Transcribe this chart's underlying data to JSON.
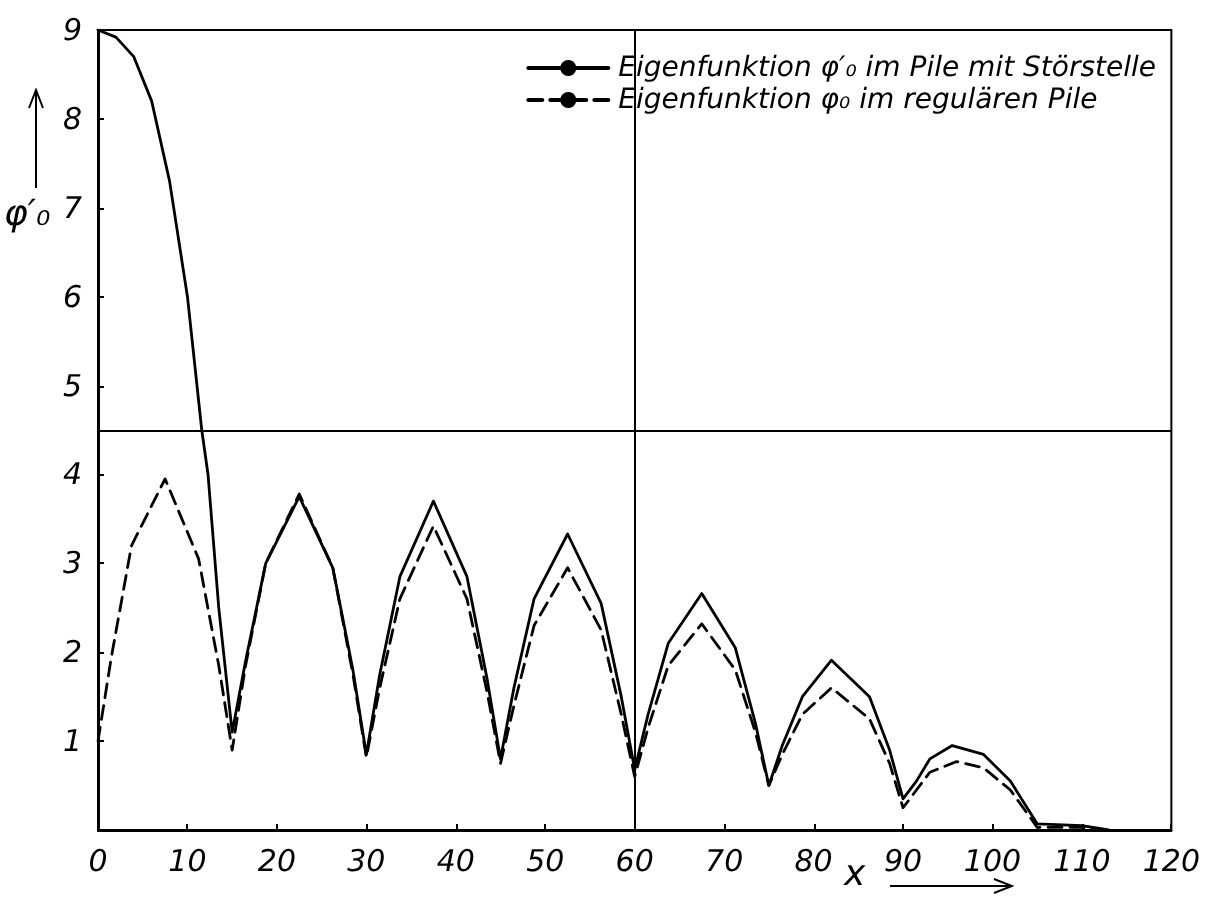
{
  "chart_data": {
    "type": "line",
    "xlabel": "x",
    "ylabel": "φ′₀",
    "xlim": [
      0,
      120
    ],
    "ylim": [
      0,
      9
    ],
    "xticks": [
      0,
      10,
      20,
      30,
      40,
      50,
      60,
      70,
      80,
      90,
      100,
      110,
      120
    ],
    "yticks": [
      1,
      2,
      3,
      4,
      5,
      6,
      7,
      8,
      9
    ],
    "grid": false,
    "legend": "top right",
    "marker": "none",
    "ref_lines": [
      {
        "axis": "y",
        "value": 4.5,
        "color": "#000000"
      },
      {
        "axis": "x",
        "value": 60,
        "color": "#000000"
      }
    ],
    "series": [
      {
        "name": "Eigenfunktion φ′₀ im Pile mit Störstelle",
        "color": "#000000",
        "line_style": "solid",
        "x": [
          0,
          2,
          4,
          6,
          8,
          10,
          11.6,
          12.3,
          13.5,
          15,
          16.5,
          18.75,
          22.5,
          26.25,
          28.5,
          30,
          31.5,
          33.75,
          37.5,
          41.25,
          43.5,
          45,
          46.5,
          48.75,
          52.5,
          56.25,
          58.5,
          60,
          61.5,
          63.75,
          67.5,
          71.25,
          73.5,
          75,
          76.5,
          78.75,
          82,
          86.25,
          88.5,
          90,
          91.5,
          93,
          95.5,
          99,
          102,
          105,
          110,
          113
        ],
        "values": [
          9,
          8.92,
          8.7,
          8.2,
          7.3,
          6,
          4.5,
          4,
          2.5,
          1.1,
          1.9,
          3.0,
          3.75,
          2.95,
          1.8,
          0.85,
          1.75,
          2.85,
          3.7,
          2.85,
          1.7,
          0.8,
          1.6,
          2.6,
          3.33,
          2.55,
          1.5,
          0.68,
          1.3,
          2.1,
          2.66,
          2.05,
          1.2,
          0.5,
          0.95,
          1.5,
          1.91,
          1.5,
          0.9,
          0.35,
          0.55,
          0.8,
          0.95,
          0.85,
          0.55,
          0.07,
          0.05,
          0
        ]
      },
      {
        "name": "Eigenfunktion φ₀ im regulären Pile",
        "color": "#000000",
        "line_style": "dashed",
        "x": [
          0,
          1.5,
          3.75,
          7.5,
          11.25,
          13.5,
          15,
          16.5,
          18.75,
          22.5,
          26.25,
          28.5,
          30,
          31.5,
          33.75,
          37.5,
          41.25,
          43.5,
          45,
          46.5,
          48.75,
          52.5,
          56.25,
          58.5,
          60,
          61.5,
          63.75,
          67.5,
          71.25,
          73.5,
          75,
          76.5,
          78.75,
          82,
          86.25,
          88.5,
          90,
          91.5,
          93,
          96,
          99,
          102,
          105,
          110,
          112
        ],
        "values": [
          1,
          1.95,
          3.2,
          3.95,
          3.05,
          1.85,
          0.9,
          1.85,
          3.0,
          3.78,
          2.95,
          1.75,
          0.82,
          1.6,
          2.6,
          3.42,
          2.6,
          1.55,
          0.75,
          1.4,
          2.3,
          2.95,
          2.25,
          1.3,
          0.6,
          1.15,
          1.85,
          2.32,
          1.8,
          1.1,
          0.5,
          0.85,
          1.3,
          1.6,
          1.25,
          0.75,
          0.25,
          0.45,
          0.65,
          0.77,
          0.7,
          0.45,
          0.03,
          0.03,
          0
        ]
      }
    ]
  }
}
